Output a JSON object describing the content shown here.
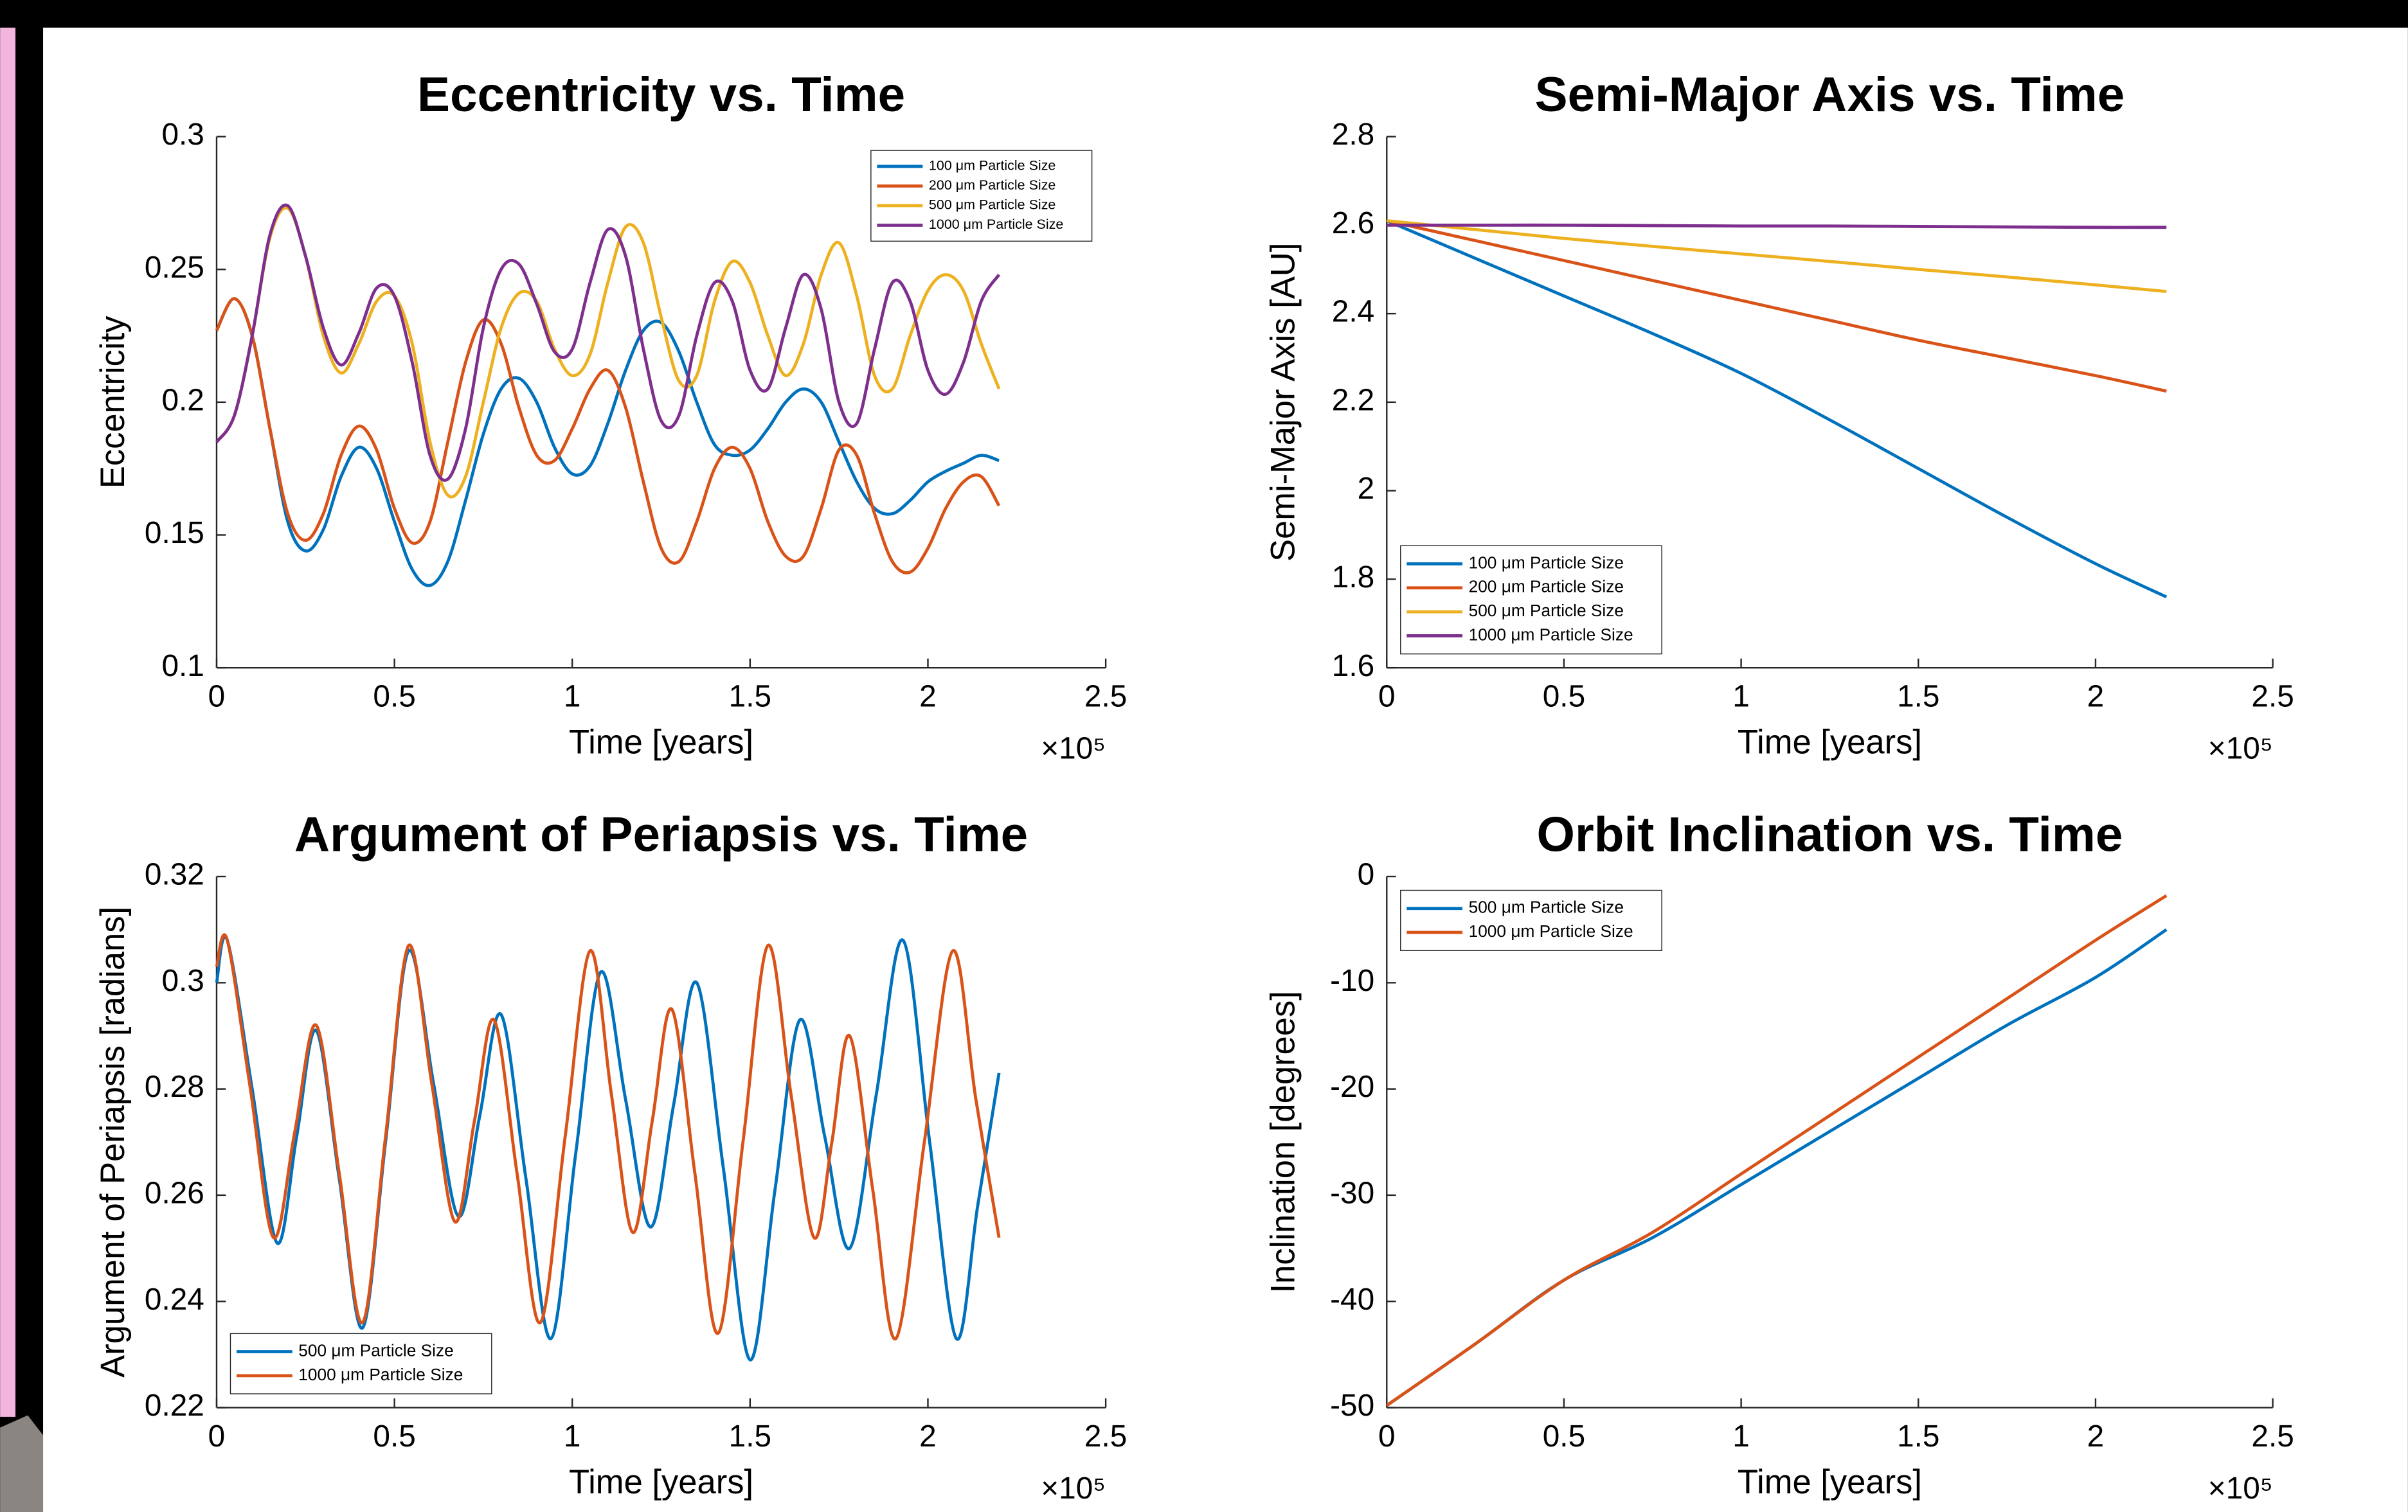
{
  "chart_data": [
    {
      "type": "line",
      "title": "Eccentricity vs. Time",
      "xlabel": "Time [years]",
      "ylabel": "Eccentricity",
      "x_scale_label": "×10⁵",
      "xlim": [
        0,
        2.5
      ],
      "xticks": [
        0,
        0.5,
        1,
        1.5,
        2,
        2.5
      ],
      "ylim": [
        0.1,
        0.3
      ],
      "yticks": [
        0.1,
        0.15,
        0.2,
        0.25,
        0.3
      ],
      "grid": false,
      "legend": "upper right",
      "x": [
        0,
        0.05,
        0.1,
        0.15,
        0.2,
        0.25,
        0.3,
        0.35,
        0.4,
        0.45,
        0.5,
        0.55,
        0.6,
        0.65,
        0.7,
        0.75,
        0.8,
        0.85,
        0.9,
        0.95,
        1.0,
        1.05,
        1.1,
        1.15,
        1.2,
        1.25,
        1.3,
        1.35,
        1.4,
        1.45,
        1.5,
        1.55,
        1.6,
        1.65,
        1.7,
        1.75,
        1.8,
        1.85,
        1.9,
        1.95,
        2.0,
        2.05,
        2.1,
        2.15,
        2.2
      ],
      "series": [
        {
          "name": "100 μm Particle Size",
          "color": "#0072BD",
          "values": [
            0.227,
            0.239,
            0.225,
            0.19,
            0.155,
            0.144,
            0.152,
            0.172,
            0.183,
            0.175,
            0.155,
            0.137,
            0.131,
            0.14,
            0.163,
            0.188,
            0.205,
            0.209,
            0.2,
            0.183,
            0.173,
            0.176,
            0.192,
            0.212,
            0.227,
            0.23,
            0.219,
            0.2,
            0.184,
            0.18,
            0.182,
            0.19,
            0.2,
            0.205,
            0.2,
            0.185,
            0.17,
            0.16,
            0.158,
            0.163,
            0.17,
            0.174,
            0.177,
            0.18,
            0.178
          ]
        },
        {
          "name": "200 μm Particle Size",
          "color": "#D95319",
          "values": [
            0.227,
            0.239,
            0.225,
            0.19,
            0.158,
            0.148,
            0.158,
            0.18,
            0.191,
            0.182,
            0.16,
            0.147,
            0.155,
            0.185,
            0.215,
            0.231,
            0.222,
            0.198,
            0.18,
            0.178,
            0.19,
            0.205,
            0.212,
            0.198,
            0.17,
            0.145,
            0.14,
            0.155,
            0.175,
            0.183,
            0.175,
            0.155,
            0.142,
            0.142,
            0.16,
            0.182,
            0.18,
            0.158,
            0.14,
            0.136,
            0.145,
            0.16,
            0.17,
            0.172,
            0.161
          ]
        },
        {
          "name": "500 μm Particle Size",
          "color": "#EDB120",
          "values": [
            0.185,
            0.195,
            0.225,
            0.262,
            0.273,
            0.255,
            0.225,
            0.211,
            0.222,
            0.238,
            0.24,
            0.222,
            0.185,
            0.165,
            0.172,
            0.2,
            0.228,
            0.241,
            0.238,
            0.22,
            0.21,
            0.218,
            0.245,
            0.266,
            0.26,
            0.232,
            0.208,
            0.21,
            0.238,
            0.253,
            0.245,
            0.225,
            0.21,
            0.222,
            0.248,
            0.26,
            0.24,
            0.21,
            0.205,
            0.225,
            0.242,
            0.248,
            0.242,
            0.222,
            0.205
          ]
        },
        {
          "name": "1000 μm Particle Size",
          "color": "#7E2F8E",
          "values": [
            0.185,
            0.195,
            0.225,
            0.263,
            0.274,
            0.255,
            0.228,
            0.214,
            0.226,
            0.243,
            0.24,
            0.215,
            0.18,
            0.171,
            0.19,
            0.228,
            0.25,
            0.252,
            0.237,
            0.219,
            0.22,
            0.245,
            0.265,
            0.255,
            0.22,
            0.193,
            0.195,
            0.225,
            0.245,
            0.238,
            0.212,
            0.205,
            0.228,
            0.248,
            0.235,
            0.2,
            0.192,
            0.22,
            0.245,
            0.238,
            0.212,
            0.203,
            0.215,
            0.238,
            0.248
          ]
        }
      ]
    },
    {
      "type": "line",
      "title": "Semi-Major Axis vs. Time",
      "xlabel": "Time [years]",
      "ylabel": "Semi-Major Axis [AU]",
      "x_scale_label": "×10⁵",
      "xlim": [
        0,
        2.5
      ],
      "xticks": [
        0,
        0.5,
        1,
        1.5,
        2,
        2.5
      ],
      "ylim": [
        1.6,
        2.8
      ],
      "yticks": [
        1.6,
        1.8,
        2,
        2.2,
        2.4,
        2.6,
        2.8
      ],
      "grid": false,
      "legend": "lower left",
      "x": [
        0,
        0.25,
        0.5,
        0.75,
        1,
        1.25,
        1.5,
        1.75,
        2,
        2.2
      ],
      "series": [
        {
          "name": "100 μm Particle Size",
          "color": "#0072BD",
          "values": [
            2.61,
            2.525,
            2.44,
            2.355,
            2.265,
            2.16,
            2.05,
            1.94,
            1.835,
            1.76
          ]
        },
        {
          "name": "200 μm Particle Size",
          "color": "#D95319",
          "values": [
            2.61,
            2.565,
            2.52,
            2.475,
            2.43,
            2.385,
            2.34,
            2.3,
            2.26,
            2.225
          ]
        },
        {
          "name": "500 μm Particle Size",
          "color": "#EDB120",
          "values": [
            2.61,
            2.59,
            2.57,
            2.552,
            2.535,
            2.518,
            2.5,
            2.483,
            2.465,
            2.45
          ]
        },
        {
          "name": "1000 μm Particle Size",
          "color": "#7E2F8E",
          "values": [
            2.6,
            2.6,
            2.6,
            2.599,
            2.598,
            2.598,
            2.597,
            2.596,
            2.595,
            2.595
          ]
        }
      ]
    },
    {
      "type": "line",
      "title": "Argument of Periapsis vs. Time",
      "xlabel": "Time [years]",
      "ylabel": "Argument of Periapsis [radians]",
      "x_scale_label": "×10⁵",
      "xlim": [
        0,
        2.5
      ],
      "xticks": [
        0,
        0.5,
        1,
        1.5,
        2,
        2.5
      ],
      "ylim": [
        0.22,
        0.32
      ],
      "yticks": [
        0.22,
        0.24,
        0.26,
        0.28,
        0.3,
        0.32
      ],
      "grid": false,
      "legend": "lower left",
      "series": [
        {
          "name": "500 μm Particle Size",
          "color": "#0072BD",
          "x": [
            0,
            0.03,
            0.1,
            0.17,
            0.225,
            0.28,
            0.345,
            0.41,
            0.475,
            0.54,
            0.61,
            0.68,
            0.74,
            0.8,
            0.87,
            0.94,
            1.01,
            1.08,
            1.15,
            1.22,
            1.285,
            1.35,
            1.425,
            1.5,
            1.57,
            1.64,
            1.71,
            1.78,
            1.855,
            1.93,
            2.005,
            2.08,
            2.14,
            2.2
          ],
          "values": [
            0.3,
            0.308,
            0.28,
            0.251,
            0.271,
            0.291,
            0.263,
            0.235,
            0.27,
            0.306,
            0.281,
            0.256,
            0.275,
            0.294,
            0.263,
            0.233,
            0.268,
            0.302,
            0.278,
            0.254,
            0.277,
            0.3,
            0.265,
            0.229,
            0.261,
            0.293,
            0.271,
            0.25,
            0.279,
            0.308,
            0.27,
            0.233,
            0.258,
            0.283
          ]
        },
        {
          "name": "1000 μm Particle Size",
          "color": "#D95319",
          "x": [
            0,
            0.03,
            0.095,
            0.16,
            0.22,
            0.28,
            0.345,
            0.41,
            0.475,
            0.54,
            0.605,
            0.67,
            0.725,
            0.78,
            0.845,
            0.91,
            0.98,
            1.05,
            1.11,
            1.17,
            1.225,
            1.28,
            1.345,
            1.41,
            1.48,
            1.55,
            1.615,
            1.68,
            1.73,
            1.78,
            1.845,
            1.91,
            1.99,
            2.07,
            2.135,
            2.2
          ],
          "values": [
            0.303,
            0.308,
            0.28,
            0.252,
            0.272,
            0.292,
            0.264,
            0.236,
            0.271,
            0.307,
            0.281,
            0.255,
            0.274,
            0.293,
            0.264,
            0.236,
            0.271,
            0.306,
            0.279,
            0.253,
            0.274,
            0.295,
            0.264,
            0.234,
            0.27,
            0.307,
            0.279,
            0.252,
            0.27,
            0.29,
            0.261,
            0.233,
            0.27,
            0.306,
            0.278,
            0.252
          ]
        }
      ]
    },
    {
      "type": "line",
      "title": "Orbit Inclination vs. Time",
      "xlabel": "Time [years]",
      "ylabel": "Inclination [degrees]",
      "x_scale_label": "×10⁵",
      "xlim": [
        0,
        2.5
      ],
      "xticks": [
        0,
        0.5,
        1,
        1.5,
        2,
        2.5
      ],
      "ylim": [
        -50,
        0
      ],
      "yticks": [
        -50,
        -40,
        -30,
        -20,
        -10,
        0
      ],
      "grid": false,
      "legend": "upper left",
      "x": [
        0,
        0.25,
        0.5,
        0.75,
        1,
        1.25,
        1.5,
        1.75,
        2,
        2.2
      ],
      "series": [
        {
          "name": "500 μm Particle Size",
          "color": "#0072BD",
          "values": [
            -49.8,
            -44,
            -38,
            -34,
            -29,
            -24,
            -19,
            -14,
            -9.5,
            -5
          ]
        },
        {
          "name": "1000 μm Particle Size",
          "color": "#D95319",
          "values": [
            -49.8,
            -44,
            -38,
            -33.5,
            -28,
            -22.5,
            -17,
            -11.5,
            -6,
            -1.8
          ]
        }
      ]
    }
  ]
}
